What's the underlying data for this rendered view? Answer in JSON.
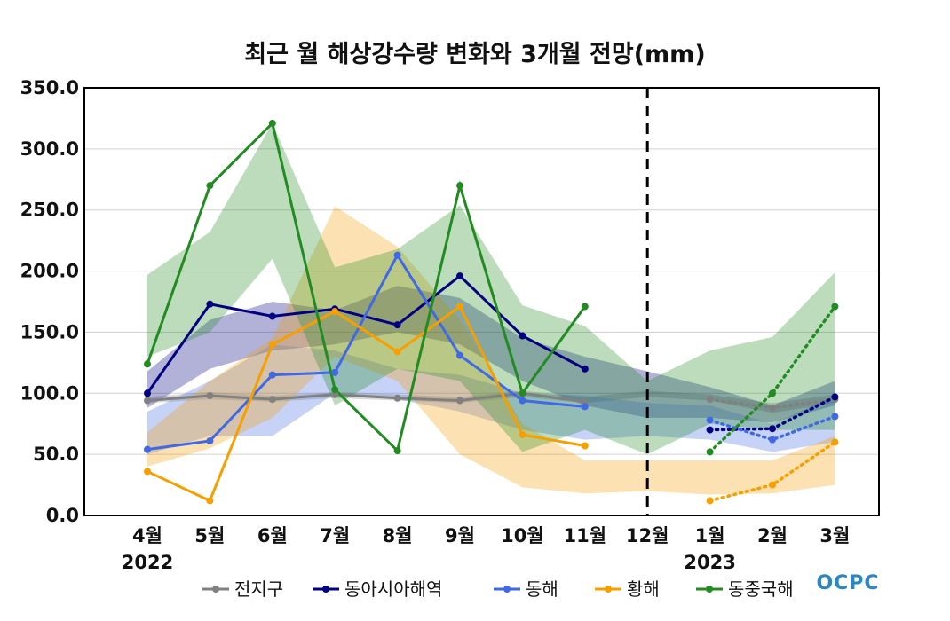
{
  "chart_data": {
    "type": "line",
    "title": "최근 월 해상강수량 변화와 3개월 전망(mm)",
    "xlabel": "",
    "ylabel": "",
    "ylim": [
      0,
      350
    ],
    "yticks": [
      0,
      50,
      100,
      150,
      200,
      250,
      300,
      350
    ],
    "ytick_labels": [
      "0.0",
      "50.0",
      "100.0",
      "150.0",
      "200.0",
      "250.0",
      "300.0",
      "350.0"
    ],
    "categories": [
      "4월",
      "5월",
      "6월",
      "7월",
      "8월",
      "9월",
      "10월",
      "11월",
      "12월",
      "1월",
      "2월",
      "3월"
    ],
    "year_labels": [
      {
        "index": 0,
        "label": "2022"
      },
      {
        "index": 9,
        "label": "2023"
      }
    ],
    "divider_index": 8,
    "grid": true,
    "legend_position": "bottom",
    "logo": "OCPC",
    "series": [
      {
        "name": "전지구",
        "color": "#808080",
        "observed": [
          94,
          98,
          95,
          99,
          96,
          94,
          100,
          93,
          null,
          null,
          null,
          null
        ],
        "forecast": [
          null,
          null,
          null,
          null,
          null,
          null,
          null,
          null,
          null,
          95,
          88,
          95
        ],
        "band_low": [
          92,
          95,
          93,
          96,
          94,
          92,
          97,
          92,
          97,
          94,
          84,
          92
        ],
        "band_high": [
          97,
          101,
          98,
          101,
          99,
          97,
          102,
          97,
          102,
          99,
          92,
          99
        ]
      },
      {
        "name": "동아시아해역",
        "color": "#000080",
        "observed": [
          100,
          173,
          163,
          169,
          156,
          196,
          147,
          120,
          null,
          null,
          null,
          null
        ],
        "forecast": [
          null,
          null,
          null,
          null,
          null,
          null,
          null,
          null,
          null,
          70,
          71,
          97
        ],
        "band_low": [
          88,
          120,
          135,
          140,
          150,
          140,
          110,
          90,
          80,
          80,
          76,
          90
        ],
        "band_high": [
          118,
          160,
          175,
          168,
          188,
          178,
          145,
          130,
          118,
          105,
          90,
          110
        ]
      },
      {
        "name": "동해",
        "color": "#4169e1",
        "observed": [
          54,
          61,
          115,
          117,
          213,
          131,
          94,
          89,
          null,
          null,
          null,
          null
        ],
        "forecast": [
          null,
          null,
          null,
          null,
          null,
          null,
          null,
          null,
          null,
          78,
          62,
          81
        ],
        "band_low": [
          50,
          65,
          65,
          100,
          95,
          85,
          70,
          62,
          65,
          62,
          52,
          60
        ],
        "band_high": [
          85,
          110,
          140,
          135,
          120,
          115,
          100,
          98,
          92,
          90,
          75,
          98
        ]
      },
      {
        "name": "황해",
        "color": "#f5a000",
        "observed": [
          36,
          12,
          140,
          167,
          134,
          171,
          66,
          57,
          null,
          null,
          null,
          null
        ],
        "forecast": [
          null,
          null,
          null,
          null,
          null,
          null,
          null,
          null,
          null,
          12,
          25,
          60
        ],
        "band_low": [
          40,
          55,
          80,
          130,
          110,
          50,
          23,
          18,
          20,
          17,
          18,
          25
        ],
        "band_high": [
          68,
          110,
          145,
          253,
          220,
          160,
          75,
          45,
          45,
          45,
          45,
          65
        ]
      },
      {
        "name": "동중국해",
        "color": "#228b22",
        "observed": [
          124,
          270,
          321,
          103,
          53,
          270,
          100,
          171,
          null,
          null,
          null,
          null
        ],
        "forecast": [
          null,
          null,
          null,
          null,
          null,
          null,
          null,
          null,
          null,
          52,
          100,
          171
        ],
        "band_low": [
          130,
          150,
          210,
          90,
          120,
          110,
          52,
          70,
          50,
          75,
          70,
          70
        ],
        "band_high": [
          197,
          232,
          321,
          203,
          218,
          254,
          172,
          155,
          110,
          135,
          146,
          199
        ]
      }
    ]
  }
}
